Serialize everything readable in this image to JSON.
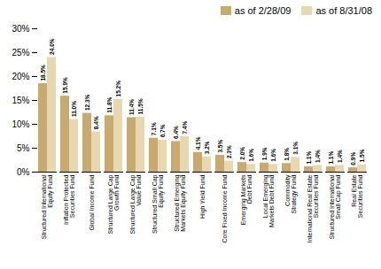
{
  "chart_data": {
    "type": "bar",
    "categories": [
      "Structured International\nEquity Fund",
      "Inflation Protected\nSecurities Fund",
      "Global Income Fund",
      "Structured Large Cap\nGrowth Fund",
      "Structured Large Cap\nValue Fund",
      "Structured Small Cap\nEquity Fund",
      "Structured Emerging\nMarkets Equity Fund",
      "High Yield Fund",
      "Core Fixed Income Fund",
      "Emerging Markets\nDebt Fund",
      "Local Emerging\nMarkets Debt Fund",
      "Commodity\nStrategy Fund",
      "International Real Estate\nSecurities Fund",
      "Structured International\nSmall Cap Fund",
      "Real Estate\nSecurities Fund"
    ],
    "series": [
      {
        "name": "as of 2/28/09",
        "color": "#C8A96E",
        "values": [
          18.5,
          15.9,
          12.3,
          11.8,
          11.4,
          7.1,
          6.4,
          4.1,
          3.5,
          2.0,
          1.9,
          1.8,
          1.1,
          1.1,
          0.9
        ],
        "value_labels": [
          "18.5%",
          "15.9%",
          "12.3%",
          "11.8%",
          "11.4%",
          "7.1%",
          "6.4%",
          "4.1%",
          "3.5%",
          "2.0%",
          "1.9%",
          "1.8%",
          "1.1%",
          "1.1%",
          "0.9%"
        ]
      },
      {
        "name": "as of 8/31/08",
        "color": "#E8D8B0",
        "values": [
          24.0,
          11.0,
          8.4,
          15.2,
          11.5,
          6.7,
          7.4,
          3.2,
          2.3,
          1.6,
          1.6,
          3.1,
          1.4,
          1.4,
          1.5
        ],
        "value_labels": [
          "24.0%",
          "11.0%",
          "8.4%",
          "15.2%",
          "11.5%",
          "6.7%",
          "7.4%",
          "3.2%",
          "2.3%",
          "1.6%",
          "1.6%",
          "3.1%",
          "1.4%",
          "1.4%",
          "1.5%"
        ]
      }
    ],
    "ylim": [
      0,
      30
    ],
    "yticks": [
      {
        "value": 0,
        "label": "0%"
      },
      {
        "value": 5,
        "label": "5%"
      },
      {
        "value": 10,
        "label": "10%"
      },
      {
        "value": 15,
        "label": "15%"
      },
      {
        "value": 20,
        "label": "20%"
      },
      {
        "value": 25,
        "label": "25%"
      },
      {
        "value": 30,
        "label": "30%"
      }
    ],
    "data_labels": true,
    "legend": "upper right",
    "grid": false
  }
}
